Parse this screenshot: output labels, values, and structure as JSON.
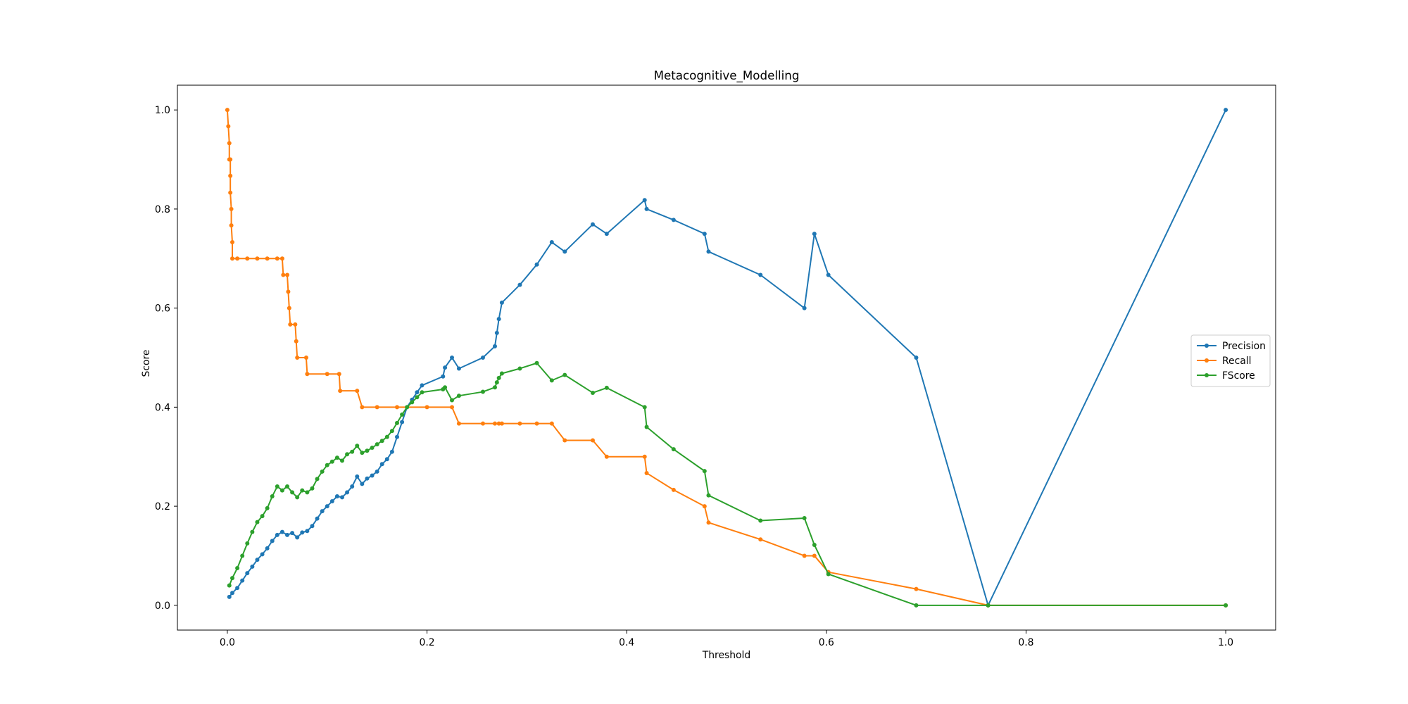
{
  "chart_data": {
    "type": "line",
    "title": "Metacognitive_Modelling",
    "xlabel": "Threshold",
    "ylabel": "Score",
    "xlim": [
      -0.05,
      1.05
    ],
    "ylim": [
      -0.05,
      1.05
    ],
    "x_ticks": [
      0.0,
      0.2,
      0.4,
      0.6,
      0.8,
      1.0
    ],
    "y_ticks": [
      0.0,
      0.2,
      0.4,
      0.6,
      0.8,
      1.0
    ],
    "x_tick_labels": [
      "0.0",
      "0.2",
      "0.4",
      "0.6",
      "0.8",
      "1.0"
    ],
    "y_tick_labels": [
      "0.0",
      "0.2",
      "0.4",
      "0.6",
      "0.8",
      "1.0"
    ],
    "grid": false,
    "legend_position": "center-right",
    "marker": "point",
    "series": [
      {
        "name": "Precision",
        "color": "#1f77b4",
        "points": [
          [
            0.002,
            0.017
          ],
          [
            0.005,
            0.025
          ],
          [
            0.01,
            0.035
          ],
          [
            0.015,
            0.05
          ],
          [
            0.02,
            0.065
          ],
          [
            0.025,
            0.078
          ],
          [
            0.03,
            0.092
          ],
          [
            0.035,
            0.103
          ],
          [
            0.04,
            0.115
          ],
          [
            0.045,
            0.13
          ],
          [
            0.05,
            0.142
          ],
          [
            0.055,
            0.148
          ],
          [
            0.06,
            0.142
          ],
          [
            0.065,
            0.146
          ],
          [
            0.07,
            0.137
          ],
          [
            0.075,
            0.147
          ],
          [
            0.08,
            0.15
          ],
          [
            0.085,
            0.16
          ],
          [
            0.09,
            0.175
          ],
          [
            0.095,
            0.19
          ],
          [
            0.1,
            0.2
          ],
          [
            0.105,
            0.21
          ],
          [
            0.11,
            0.22
          ],
          [
            0.115,
            0.218
          ],
          [
            0.12,
            0.228
          ],
          [
            0.125,
            0.24
          ],
          [
            0.13,
            0.26
          ],
          [
            0.135,
            0.245
          ],
          [
            0.14,
            0.256
          ],
          [
            0.145,
            0.262
          ],
          [
            0.15,
            0.27
          ],
          [
            0.155,
            0.285
          ],
          [
            0.16,
            0.295
          ],
          [
            0.165,
            0.31
          ],
          [
            0.17,
            0.34
          ],
          [
            0.175,
            0.37
          ],
          [
            0.18,
            0.4
          ],
          [
            0.185,
            0.415
          ],
          [
            0.19,
            0.43
          ],
          [
            0.195,
            0.444
          ],
          [
            0.216,
            0.462
          ],
          [
            0.218,
            0.48
          ],
          [
            0.225,
            0.5
          ],
          [
            0.232,
            0.478
          ],
          [
            0.256,
            0.5
          ],
          [
            0.268,
            0.523
          ],
          [
            0.27,
            0.55
          ],
          [
            0.272,
            0.578
          ],
          [
            0.275,
            0.611
          ],
          [
            0.293,
            0.647
          ],
          [
            0.31,
            0.688
          ],
          [
            0.325,
            0.733
          ],
          [
            0.338,
            0.714
          ],
          [
            0.366,
            0.769
          ],
          [
            0.38,
            0.75
          ],
          [
            0.418,
            0.818
          ],
          [
            0.42,
            0.8
          ],
          [
            0.447,
            0.778
          ],
          [
            0.478,
            0.75
          ],
          [
            0.482,
            0.714
          ],
          [
            0.534,
            0.667
          ],
          [
            0.578,
            0.6
          ],
          [
            0.588,
            0.75
          ],
          [
            0.602,
            0.667
          ],
          [
            0.69,
            0.5
          ],
          [
            0.762,
            0.0
          ],
          [
            1.0,
            1.0
          ]
        ]
      },
      {
        "name": "Recall",
        "color": "#ff7f0e",
        "points": [
          [
            0.0,
            1.0
          ],
          [
            0.001,
            0.967
          ],
          [
            0.002,
            0.933
          ],
          [
            0.002,
            0.9
          ],
          [
            0.003,
            0.9
          ],
          [
            0.003,
            0.867
          ],
          [
            0.003,
            0.833
          ],
          [
            0.004,
            0.8
          ],
          [
            0.004,
            0.767
          ],
          [
            0.005,
            0.733
          ],
          [
            0.005,
            0.7
          ],
          [
            0.01,
            0.7
          ],
          [
            0.02,
            0.7
          ],
          [
            0.03,
            0.7
          ],
          [
            0.04,
            0.7
          ],
          [
            0.05,
            0.7
          ],
          [
            0.055,
            0.7
          ],
          [
            0.056,
            0.667
          ],
          [
            0.06,
            0.667
          ],
          [
            0.061,
            0.633
          ],
          [
            0.062,
            0.6
          ],
          [
            0.063,
            0.567
          ],
          [
            0.068,
            0.567
          ],
          [
            0.069,
            0.533
          ],
          [
            0.07,
            0.5
          ],
          [
            0.079,
            0.5
          ],
          [
            0.08,
            0.467
          ],
          [
            0.1,
            0.467
          ],
          [
            0.112,
            0.467
          ],
          [
            0.113,
            0.433
          ],
          [
            0.13,
            0.433
          ],
          [
            0.135,
            0.4
          ],
          [
            0.15,
            0.4
          ],
          [
            0.17,
            0.4
          ],
          [
            0.2,
            0.4
          ],
          [
            0.225,
            0.4
          ],
          [
            0.232,
            0.367
          ],
          [
            0.256,
            0.367
          ],
          [
            0.268,
            0.367
          ],
          [
            0.272,
            0.367
          ],
          [
            0.275,
            0.367
          ],
          [
            0.293,
            0.367
          ],
          [
            0.31,
            0.367
          ],
          [
            0.325,
            0.367
          ],
          [
            0.338,
            0.333
          ],
          [
            0.366,
            0.333
          ],
          [
            0.38,
            0.3
          ],
          [
            0.418,
            0.3
          ],
          [
            0.42,
            0.267
          ],
          [
            0.447,
            0.233
          ],
          [
            0.478,
            0.2
          ],
          [
            0.482,
            0.167
          ],
          [
            0.534,
            0.133
          ],
          [
            0.578,
            0.1
          ],
          [
            0.588,
            0.1
          ],
          [
            0.602,
            0.067
          ],
          [
            0.69,
            0.033
          ],
          [
            0.762,
            0.0
          ],
          [
            1.0,
            0.0
          ]
        ]
      },
      {
        "name": "FScore",
        "color": "#2ca02c",
        "points": [
          [
            0.002,
            0.04
          ],
          [
            0.005,
            0.055
          ],
          [
            0.01,
            0.075
          ],
          [
            0.015,
            0.1
          ],
          [
            0.02,
            0.125
          ],
          [
            0.025,
            0.148
          ],
          [
            0.03,
            0.168
          ],
          [
            0.035,
            0.18
          ],
          [
            0.04,
            0.196
          ],
          [
            0.045,
            0.22
          ],
          [
            0.05,
            0.24
          ],
          [
            0.055,
            0.232
          ],
          [
            0.06,
            0.24
          ],
          [
            0.065,
            0.228
          ],
          [
            0.07,
            0.218
          ],
          [
            0.075,
            0.232
          ],
          [
            0.08,
            0.228
          ],
          [
            0.085,
            0.236
          ],
          [
            0.09,
            0.255
          ],
          [
            0.095,
            0.27
          ],
          [
            0.1,
            0.283
          ],
          [
            0.105,
            0.29
          ],
          [
            0.11,
            0.298
          ],
          [
            0.115,
            0.292
          ],
          [
            0.12,
            0.305
          ],
          [
            0.125,
            0.31
          ],
          [
            0.13,
            0.322
          ],
          [
            0.135,
            0.308
          ],
          [
            0.14,
            0.312
          ],
          [
            0.145,
            0.318
          ],
          [
            0.15,
            0.325
          ],
          [
            0.155,
            0.332
          ],
          [
            0.16,
            0.34
          ],
          [
            0.165,
            0.352
          ],
          [
            0.17,
            0.368
          ],
          [
            0.175,
            0.385
          ],
          [
            0.18,
            0.4
          ],
          [
            0.185,
            0.41
          ],
          [
            0.19,
            0.42
          ],
          [
            0.195,
            0.43
          ],
          [
            0.216,
            0.436
          ],
          [
            0.218,
            0.44
          ],
          [
            0.225,
            0.414
          ],
          [
            0.232,
            0.423
          ],
          [
            0.256,
            0.431
          ],
          [
            0.268,
            0.44
          ],
          [
            0.27,
            0.45
          ],
          [
            0.272,
            0.459
          ],
          [
            0.275,
            0.468
          ],
          [
            0.293,
            0.478
          ],
          [
            0.31,
            0.489
          ],
          [
            0.325,
            0.454
          ],
          [
            0.338,
            0.465
          ],
          [
            0.366,
            0.429
          ],
          [
            0.38,
            0.439
          ],
          [
            0.418,
            0.4
          ],
          [
            0.42,
            0.36
          ],
          [
            0.447,
            0.315
          ],
          [
            0.478,
            0.271
          ],
          [
            0.482,
            0.222
          ],
          [
            0.534,
            0.171
          ],
          [
            0.578,
            0.176
          ],
          [
            0.588,
            0.122
          ],
          [
            0.602,
            0.063
          ],
          [
            0.69,
            0.0
          ],
          [
            0.762,
            0.0
          ],
          [
            1.0,
            0.0
          ]
        ]
      }
    ]
  }
}
